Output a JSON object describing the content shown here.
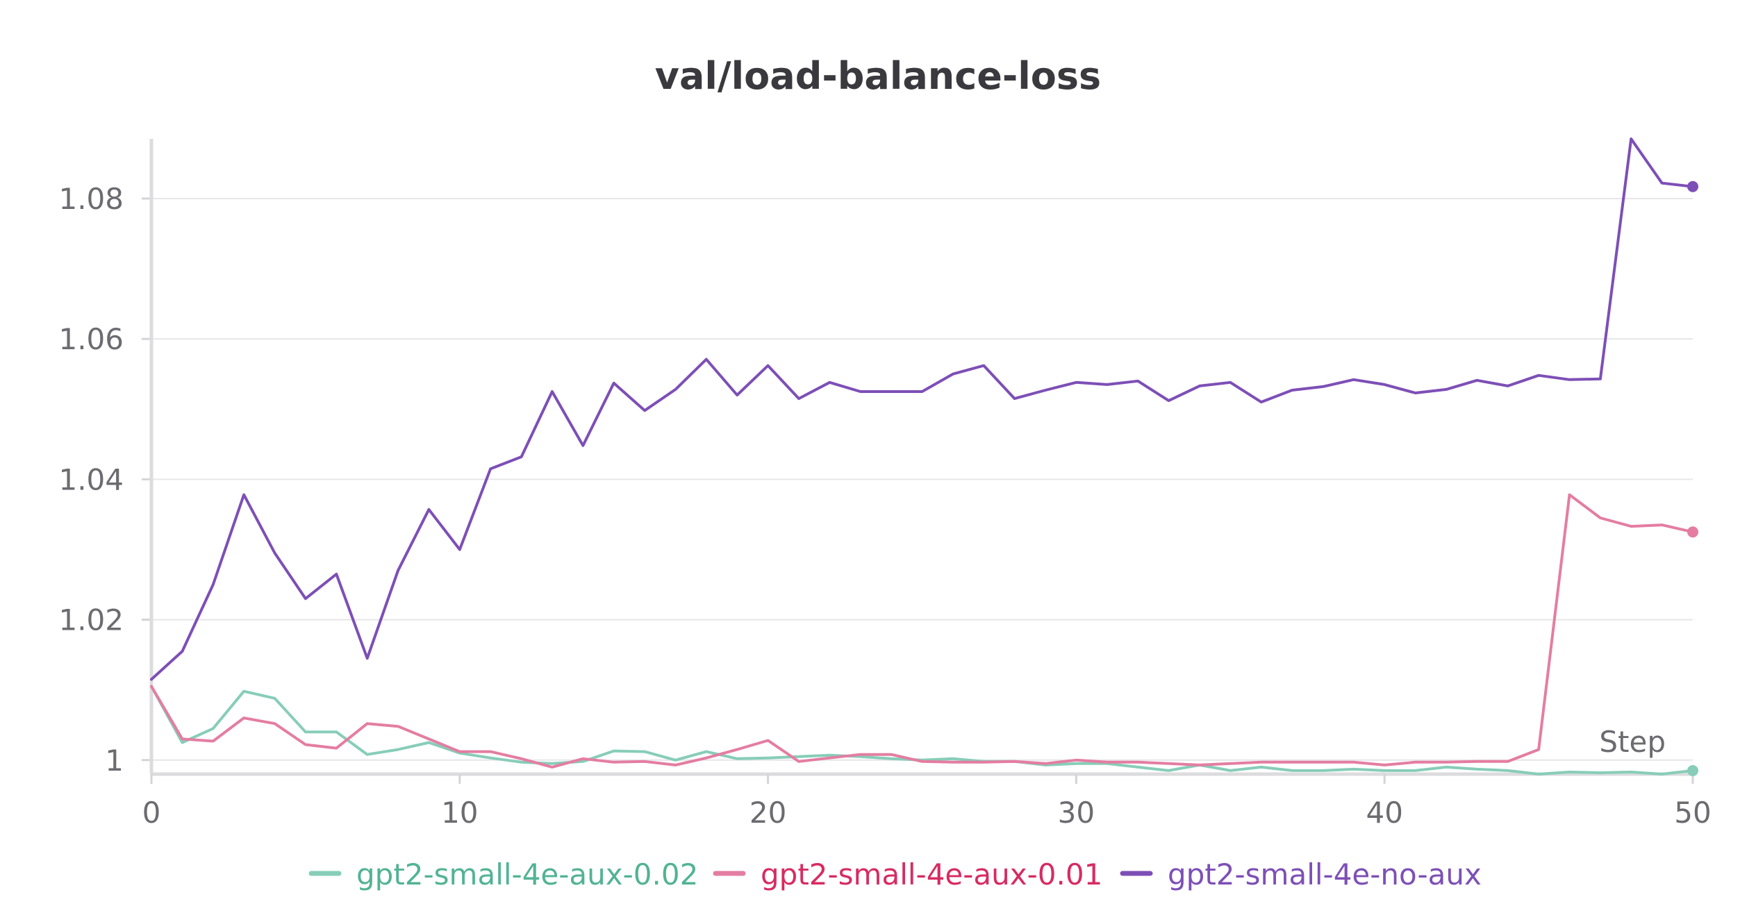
{
  "chart_data": {
    "type": "line",
    "title": "val/load-balance-loss",
    "xlabel": "Step",
    "ylabel": "",
    "xlim": [
      0,
      50
    ],
    "ylim": [
      0.998,
      1.0885
    ],
    "x_ticks": [
      0,
      10,
      20,
      30,
      40,
      50
    ],
    "x_tick_labels": [
      "0",
      "10",
      "20",
      "30",
      "40",
      "50"
    ],
    "y_ticks": [
      1.0,
      1.02,
      1.04,
      1.06,
      1.08
    ],
    "y_tick_labels": [
      "1",
      "1.02",
      "1.04",
      "1.06",
      "1.08"
    ],
    "grid": true,
    "legend_position": "bottom",
    "x": [
      0,
      1,
      2,
      3,
      4,
      5,
      6,
      7,
      8,
      9,
      10,
      11,
      12,
      13,
      14,
      15,
      16,
      17,
      18,
      19,
      20,
      21,
      22,
      23,
      24,
      25,
      26,
      27,
      28,
      29,
      30,
      31,
      32,
      33,
      34,
      35,
      36,
      37,
      38,
      39,
      40,
      41,
      42,
      43,
      44,
      45,
      46,
      47,
      48,
      49,
      50
    ],
    "series": [
      {
        "name": "gpt2-small-4e-aux-0.02",
        "color": "#87cdb8",
        "text_color": "#52b394",
        "values": [
          1.0105,
          1.0025,
          1.0045,
          1.0098,
          1.0088,
          1.004,
          1.004,
          1.0008,
          1.0015,
          1.0025,
          1.001,
          1.0003,
          0.9997,
          0.9995,
          0.9998,
          1.0013,
          1.0012,
          1.0,
          1.0012,
          1.0002,
          1.0003,
          1.0005,
          1.0007,
          1.0005,
          1.0002,
          1.0,
          1.0002,
          0.9998,
          0.9998,
          0.9993,
          0.9995,
          0.9995,
          0.999,
          0.9985,
          0.9993,
          0.9985,
          0.999,
          0.9985,
          0.9985,
          0.9987,
          0.9985,
          0.9985,
          0.999,
          0.9987,
          0.9985,
          0.998,
          0.9983,
          0.9982,
          0.9983,
          0.998,
          0.9985
        ]
      },
      {
        "name": "gpt2-small-4e-aux-0.01",
        "color": "#e47da1",
        "text_color": "#d72b62",
        "values": [
          1.0105,
          1.003,
          1.0027,
          1.006,
          1.0052,
          1.0022,
          1.0017,
          1.0052,
          1.0048,
          1.003,
          1.0012,
          1.0012,
          1.0002,
          0.999,
          1.0002,
          0.9997,
          0.9998,
          0.9993,
          1.0003,
          1.0015,
          1.0028,
          0.9998,
          1.0003,
          1.0008,
          1.0008,
          0.9998,
          0.9997,
          0.9997,
          0.9998,
          0.9995,
          1.0,
          0.9997,
          0.9997,
          0.9995,
          0.9993,
          0.9995,
          0.9997,
          0.9997,
          0.9997,
          0.9997,
          0.9993,
          0.9997,
          0.9997,
          0.9998,
          0.9998,
          1.0015,
          1.0378,
          1.0345,
          1.0333,
          1.0335,
          1.0325
        ]
      },
      {
        "name": "gpt2-small-4e-no-aux",
        "color": "#7d4fb6",
        "text_color": "#7d4fb6",
        "values": [
          1.0115,
          1.0155,
          1.025,
          1.0378,
          1.0295,
          1.023,
          1.0265,
          1.0145,
          1.027,
          1.0357,
          1.03,
          1.0415,
          1.0432,
          1.0525,
          1.0448,
          1.0537,
          1.0498,
          1.0528,
          1.0571,
          1.052,
          1.0562,
          1.0515,
          1.0538,
          1.0525,
          1.0525,
          1.0525,
          1.055,
          1.0562,
          1.0515,
          1.0527,
          1.0538,
          1.0535,
          1.054,
          1.0512,
          1.0533,
          1.0538,
          1.051,
          1.0527,
          1.0532,
          1.0542,
          1.0535,
          1.0523,
          1.0528,
          1.0541,
          1.0533,
          1.0548,
          1.0542,
          1.0543,
          1.0885,
          1.0822,
          1.0817
        ]
      }
    ]
  }
}
